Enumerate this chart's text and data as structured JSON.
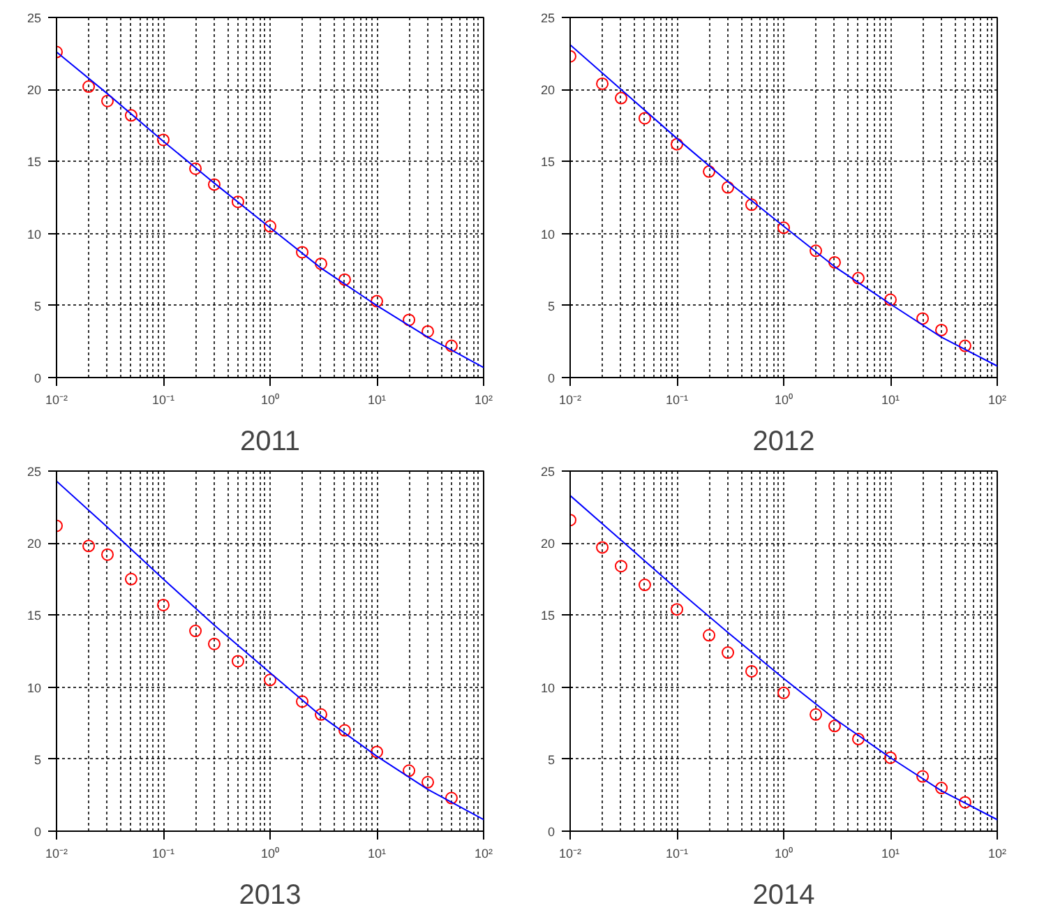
{
  "chart_data": [
    {
      "type": "scatter",
      "xlabel": "2011",
      "log": "x",
      "grid": true,
      "xlim": [
        0.01,
        100
      ],
      "ylim": [
        0,
        25
      ],
      "xticks": [
        {
          "value": 0.01,
          "label": "10⁻²"
        },
        {
          "value": 0.1,
          "label": "10⁻¹"
        },
        {
          "value": 1,
          "label": "10⁰"
        },
        {
          "value": 10,
          "label": "10¹"
        },
        {
          "value": 100,
          "label": "10²"
        }
      ],
      "yticks": [
        0,
        5,
        10,
        15,
        20,
        25
      ],
      "series": [
        {
          "marker": "circle",
          "color": "#ff0000",
          "x": [
            0.01,
            0.02,
            0.03,
            0.05,
            0.1,
            0.2,
            0.3,
            0.5,
            1,
            2,
            3,
            5,
            10,
            20,
            30,
            50
          ],
          "values": [
            22.6,
            20.2,
            19.2,
            18.2,
            16.5,
            14.5,
            13.4,
            12.2,
            10.5,
            8.7,
            7.9,
            6.8,
            5.3,
            4.0,
            3.2,
            2.2
          ]
        },
        {
          "type": "line",
          "color": "#0000ff",
          "x": [
            0.01,
            0.03,
            0.1,
            0.3,
            1,
            3,
            10,
            30,
            100
          ],
          "values": [
            22.6,
            19.7,
            16.4,
            13.5,
            10.4,
            7.6,
            5.0,
            2.8,
            0.7
          ]
        }
      ]
    },
    {
      "type": "scatter",
      "xlabel": "2012",
      "log": "x",
      "grid": true,
      "xlim": [
        0.01,
        100
      ],
      "ylim": [
        0,
        25
      ],
      "xticks": [
        {
          "value": 0.01,
          "label": "10⁻²"
        },
        {
          "value": 0.1,
          "label": "10⁻¹"
        },
        {
          "value": 1,
          "label": "10⁰"
        },
        {
          "value": 10,
          "label": "10¹"
        },
        {
          "value": 100,
          "label": "10²"
        }
      ],
      "yticks": [
        0,
        5,
        10,
        15,
        20,
        25
      ],
      "series": [
        {
          "marker": "circle",
          "color": "#ff0000",
          "x": [
            0.01,
            0.02,
            0.03,
            0.05,
            0.1,
            0.2,
            0.3,
            0.5,
            1,
            2,
            3,
            5,
            10,
            20,
            30,
            50
          ],
          "values": [
            22.3,
            20.4,
            19.4,
            18.0,
            16.2,
            14.3,
            13.2,
            12.0,
            10.4,
            8.8,
            8.0,
            6.9,
            5.4,
            4.1,
            3.3,
            2.2
          ]
        },
        {
          "type": "line",
          "color": "#0000ff",
          "x": [
            0.01,
            0.03,
            0.1,
            0.3,
            1,
            3,
            10,
            30,
            100
          ],
          "values": [
            23.1,
            20.0,
            16.6,
            13.6,
            10.5,
            7.7,
            5.1,
            2.8,
            0.8
          ]
        }
      ]
    },
    {
      "type": "scatter",
      "xlabel": "2013",
      "log": "x",
      "grid": true,
      "xlim": [
        0.01,
        100
      ],
      "ylim": [
        0,
        25
      ],
      "xticks": [
        {
          "value": 0.01,
          "label": "10⁻²"
        },
        {
          "value": 0.1,
          "label": "10⁻¹"
        },
        {
          "value": 1,
          "label": "10⁰"
        },
        {
          "value": 10,
          "label": "10¹"
        },
        {
          "value": 100,
          "label": "10²"
        }
      ],
      "yticks": [
        0,
        5,
        10,
        15,
        20,
        25
      ],
      "series": [
        {
          "marker": "circle",
          "color": "#ff0000",
          "x": [
            0.01,
            0.02,
            0.03,
            0.05,
            0.1,
            0.2,
            0.3,
            0.5,
            1,
            2,
            3,
            5,
            10,
            20,
            30,
            50
          ],
          "values": [
            21.2,
            19.8,
            19.2,
            17.5,
            15.7,
            13.9,
            13.0,
            11.8,
            10.5,
            9.0,
            8.1,
            7.0,
            5.5,
            4.2,
            3.4,
            2.3
          ]
        },
        {
          "type": "line",
          "color": "#0000ff",
          "x": [
            0.01,
            0.03,
            0.1,
            0.3,
            1,
            3,
            10,
            30,
            100
          ],
          "values": [
            24.3,
            21.1,
            17.5,
            14.3,
            11.0,
            8.0,
            5.2,
            2.9,
            0.8
          ]
        }
      ]
    },
    {
      "type": "scatter",
      "xlabel": "2014",
      "log": "x",
      "grid": true,
      "xlim": [
        0.01,
        100
      ],
      "ylim": [
        0,
        25
      ],
      "xticks": [
        {
          "value": 0.01,
          "label": "10⁻²"
        },
        {
          "value": 0.1,
          "label": "10⁻¹"
        },
        {
          "value": 1,
          "label": "10⁰"
        },
        {
          "value": 10,
          "label": "10¹"
        },
        {
          "value": 100,
          "label": "10²"
        }
      ],
      "yticks": [
        0,
        5,
        10,
        15,
        20,
        25
      ],
      "series": [
        {
          "marker": "circle",
          "color": "#ff0000",
          "x": [
            0.01,
            0.02,
            0.03,
            0.05,
            0.1,
            0.2,
            0.3,
            0.5,
            1,
            2,
            3,
            5,
            10,
            20,
            30,
            50
          ],
          "values": [
            21.6,
            19.7,
            18.4,
            17.1,
            15.4,
            13.6,
            12.4,
            11.1,
            9.6,
            8.1,
            7.3,
            6.4,
            5.1,
            3.8,
            3.0,
            2.0
          ]
        },
        {
          "type": "line",
          "color": "#0000ff",
          "x": [
            0.01,
            0.03,
            0.1,
            0.3,
            1,
            3,
            10,
            30,
            100
          ],
          "values": [
            23.3,
            20.2,
            16.8,
            13.8,
            10.6,
            7.8,
            5.1,
            2.8,
            0.8
          ]
        }
      ]
    }
  ]
}
